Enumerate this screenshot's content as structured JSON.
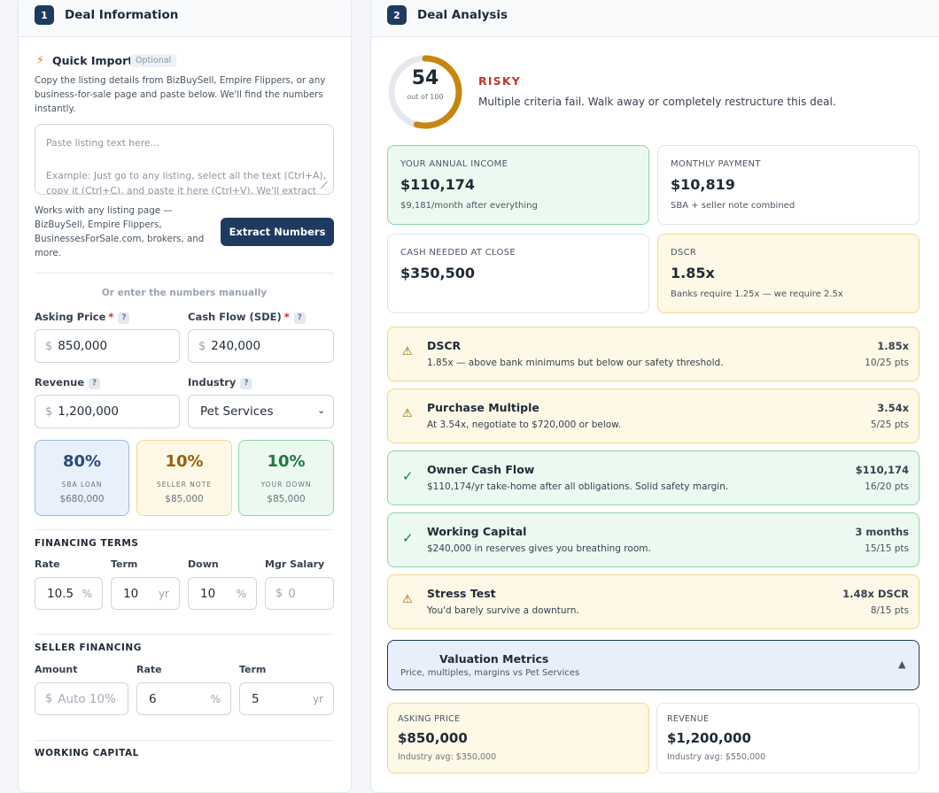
{
  "left": {
    "step": "1",
    "title": "Deal Information",
    "quick_import": {
      "title": "Quick Import",
      "badge": "Optional",
      "description": [
        "Copy the listing details from BizBuySell, Empire Flippers, or any",
        "business-for-sale page and paste below. We'll find the numbers",
        "instantly."
      ],
      "placeholder": [
        "Paste listing text here...",
        "Example: Just go to any listing, select all the text (Ctrl+A),",
        "copy it (Ctrl+C), and paste it here (Ctrl+V). We'll extract"
      ],
      "note": [
        "Works with any listing page —",
        "BizBuySell, Empire Flippers,",
        "BusinessesForSale.com, brokers, and",
        "more."
      ],
      "button": "Extract Numbers"
    },
    "manual_label": "Or enter the numbers manually",
    "help_icon": "?",
    "fields": [
      {
        "label": "Asking Price",
        "required": "*",
        "prefix": "$",
        "value": "850,000"
      },
      {
        "label": "Cash Flow (SDE)",
        "required": "*",
        "prefix": "$",
        "value": "240,000"
      },
      {
        "label": "Revenue",
        "prefix": "$",
        "value": "1,200,000"
      },
      {
        "label": "Industry",
        "value": "Pet Services"
      }
    ],
    "split": [
      {
        "percent": "80%",
        "label": "SBA LOAN",
        "amount": "$680,000",
        "status": "blue"
      },
      {
        "percent": "10%",
        "label": "SELLER NOTE",
        "amount": "$85,000",
        "status": "yellow"
      },
      {
        "percent": "10%",
        "label": "YOUR DOWN",
        "amount": "$85,000",
        "status": "green"
      }
    ],
    "financing_terms": {
      "title": "FINANCING TERMS",
      "fields": [
        {
          "label": "Rate",
          "value": "10.5",
          "suffix": "%"
        },
        {
          "label": "Term",
          "value": "10",
          "suffix": "yr"
        },
        {
          "label": "Down",
          "value": "10",
          "suffix": "%"
        },
        {
          "label": "Mgr Salary",
          "prefix": "$",
          "placeholder": "0"
        }
      ]
    },
    "seller_financing": {
      "title": "SELLER FINANCING",
      "fields": [
        {
          "label": "Amount",
          "prefix": "$",
          "placeholder": "Auto 10%"
        },
        {
          "label": "Rate",
          "value": "6",
          "suffix": "%"
        },
        {
          "label": "Term",
          "value": "5",
          "suffix": "yr"
        }
      ]
    },
    "working_capital": {
      "title": "WORKING CAPITAL"
    }
  },
  "right": {
    "step": "2",
    "title": "Deal Analysis",
    "score": {
      "value": 54,
      "max": 100,
      "label": "out of 100"
    },
    "verdict": "RISKY",
    "message": "Multiple criteria fail. Walk away or completely restructure this deal.",
    "metrics": [
      {
        "label": "YOUR ANNUAL INCOME",
        "value": "$110,174",
        "sub": "$9,181/month after everything",
        "status": "green"
      },
      {
        "label": "MONTHLY PAYMENT",
        "value": "$10,819",
        "sub": "SBA + seller note combined",
        "status": "plain"
      },
      {
        "label": "CASH NEEDED AT CLOSE",
        "value": "$350,500",
        "status": "plain"
      },
      {
        "label": "DSCR",
        "value": "1.85x",
        "sub": "Banks require 1.25x — we require 2.5x",
        "status": "yellow"
      }
    ],
    "criteria": [
      {
        "title": "DSCR",
        "description": "1.85x — above bank minimums but below our safety threshold.",
        "value": "1.85x",
        "points": "10/25 pts",
        "status": "yellow"
      },
      {
        "title": "Purchase Multiple",
        "description": "At 3.54x, negotiate to $720,000 or below.",
        "value": "3.54x",
        "points": "5/25 pts",
        "status": "yellow"
      },
      {
        "title": "Owner Cash Flow",
        "description": "$110,174/yr take-home after all obligations. Solid safety margin.",
        "value": "$110,174",
        "points": "16/20 pts",
        "status": "green"
      },
      {
        "title": "Working Capital",
        "description": "$240,000 in reserves gives you breathing room.",
        "value": "3 months",
        "points": "15/15 pts",
        "status": "green"
      },
      {
        "title": "Stress Test",
        "description": "You'd barely survive a downturn.",
        "value": "1.48x DSCR",
        "points": "8/15 pts",
        "status": "yellow"
      }
    ],
    "valuation": {
      "title": "Valuation Metrics",
      "subtitle": "Price, multiples, margins vs Pet Services",
      "toggle": "▲",
      "cards": [
        {
          "label": "ASKING PRICE",
          "value": "$850,000",
          "sub": "Industry avg: $350,000",
          "status": "yellow"
        },
        {
          "label": "REVENUE",
          "value": "$1,200,000",
          "sub": "Industry avg: $550,000",
          "status": "plain"
        }
      ]
    }
  }
}
